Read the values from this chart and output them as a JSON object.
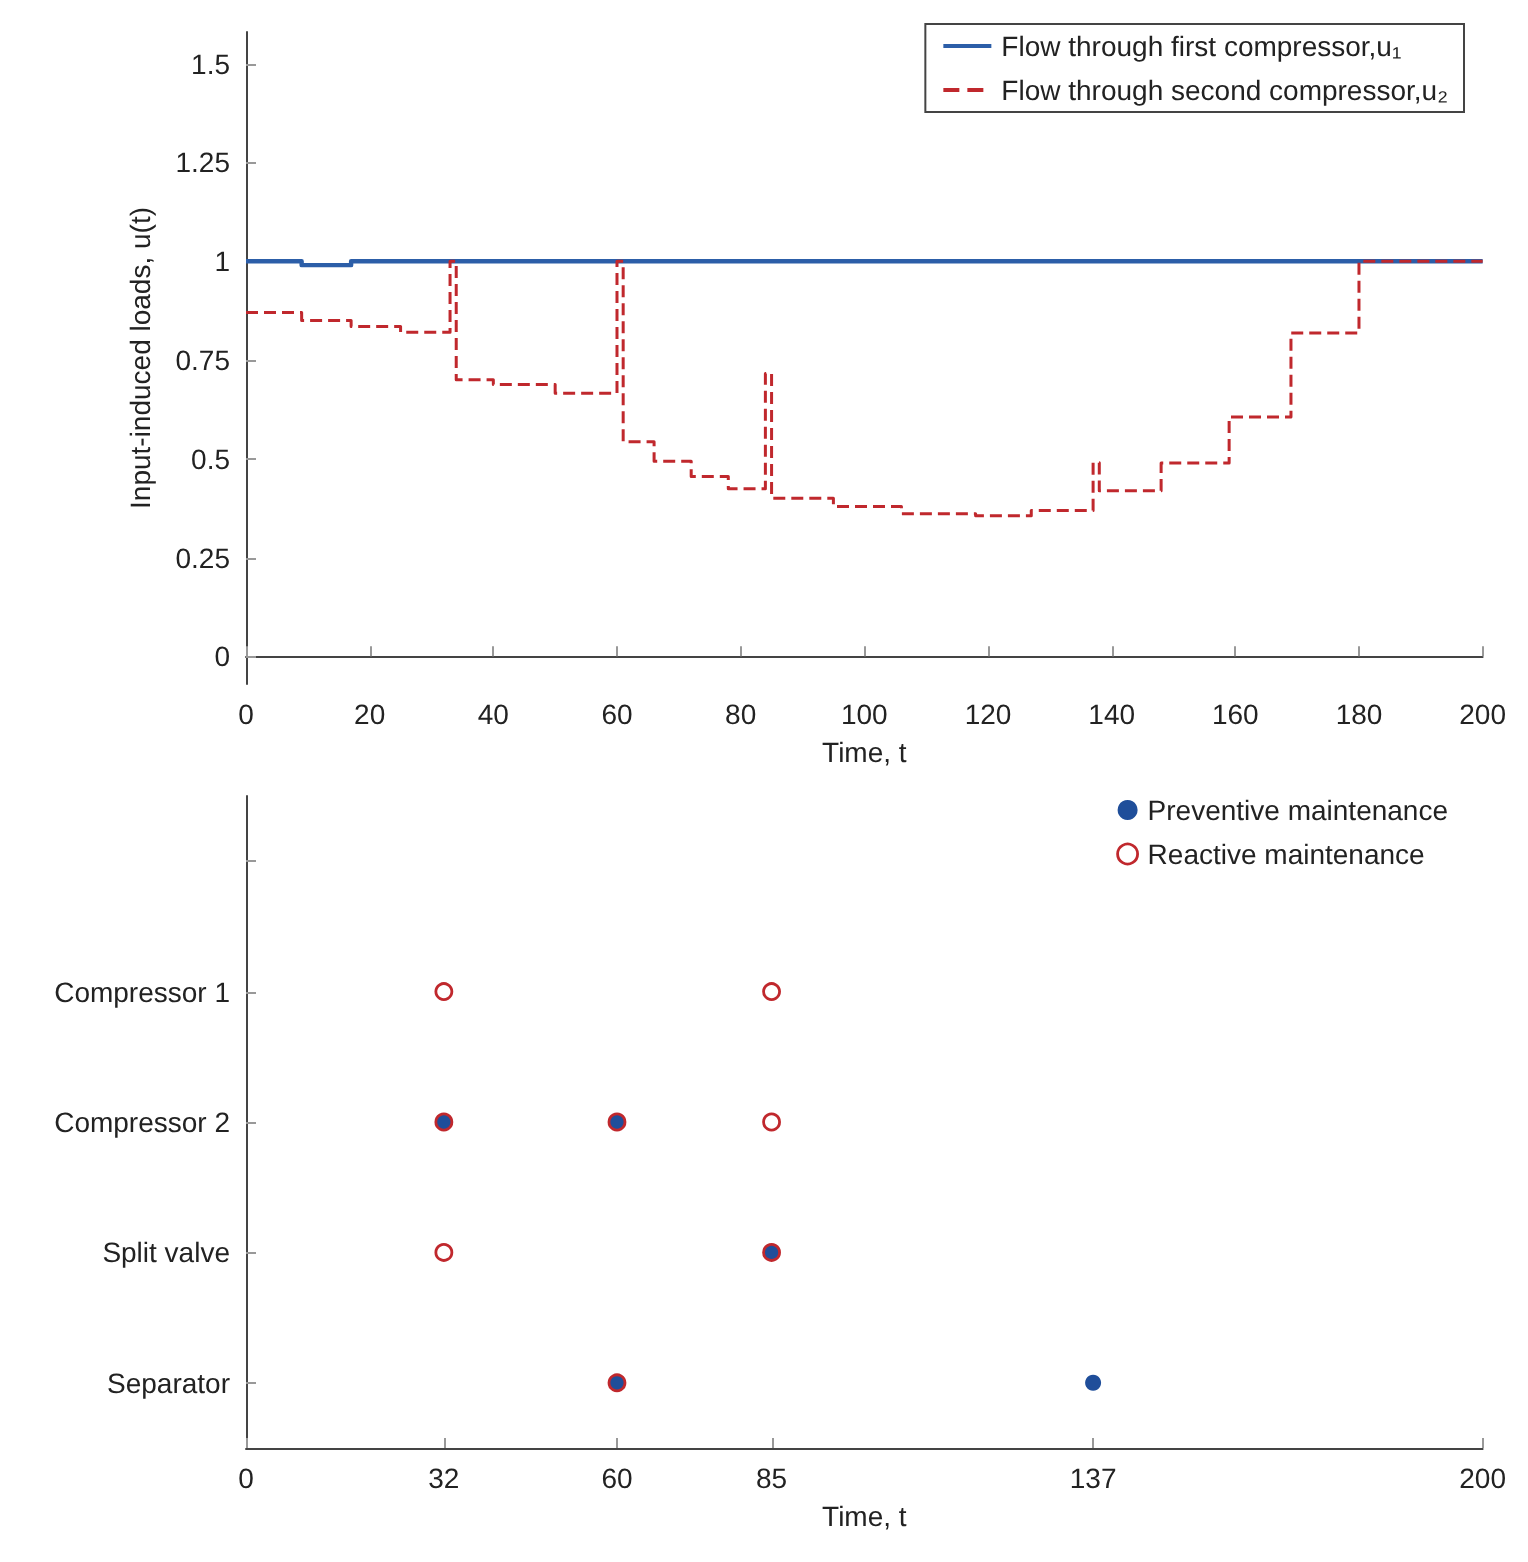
{
  "chart_data": [
    {
      "type": "step",
      "xlabel": "Time, t",
      "ylabel": "Input-induced loads, u(t)",
      "xlim": [
        0,
        200
      ],
      "xticks": [
        0,
        20,
        40,
        60,
        80,
        100,
        120,
        140,
        160,
        180,
        200
      ],
      "ylim": [
        -0.07,
        1.58
      ],
      "yticks": [
        0,
        0.25,
        0.5,
        0.75,
        1,
        1.25,
        1.5
      ],
      "legend": "top right",
      "grid": false,
      "series": [
        {
          "name": "Flow through first compressor,u₁",
          "color": "#2c5ea8",
          "line_style": "solid",
          "x": [
            0,
            9,
            17,
            200
          ],
          "values": [
            1,
            0.99,
            1,
            1
          ]
        },
        {
          "name": "Flow through second compressor,u₂",
          "color": "#c0282d",
          "line_style": "dashed",
          "x": [
            0,
            9,
            17,
            25,
            33,
            34,
            40,
            50,
            60,
            61,
            66,
            72,
            78,
            84,
            85,
            95,
            106,
            118,
            127,
            137,
            138,
            148,
            159,
            169,
            180,
            200
          ],
          "values": [
            0.87,
            0.85,
            0.835,
            0.82,
            1,
            0.7,
            0.688,
            0.666,
            1,
            0.543,
            0.494,
            0.455,
            0.424,
            0.716,
            0.4,
            0.379,
            0.361,
            0.356,
            0.369,
            0.49,
            0.419,
            0.489,
            0.606,
            0.818,
            1,
            1
          ]
        }
      ]
    },
    {
      "type": "scatter",
      "orientation": "horizontal",
      "xlabel": "Time, t",
      "xlim": [
        0,
        200
      ],
      "xticks": [
        0,
        32,
        60,
        85,
        137,
        200
      ],
      "categories": [
        null,
        "Compressor 1",
        "Compressor 2",
        "Split valve",
        "Separator"
      ],
      "legend": "top right",
      "grid": false,
      "series": [
        {
          "name": "Preventive maintenance",
          "color": "#1f4e9a",
          "marker": "circle",
          "x": [
            "Compressor 2",
            "Compressor 2",
            "Split valve",
            "Separator",
            "Separator"
          ],
          "values": [
            32,
            60,
            85,
            60,
            137
          ]
        },
        {
          "name": "Reactive maintenance",
          "color": "#c0282d",
          "marker": "open circle",
          "x": [
            "Compressor 1",
            "Compressor 1",
            "Compressor 2",
            "Compressor 2",
            "Compressor 2",
            "Split valve",
            "Split valve",
            "Separator"
          ],
          "values": [
            32,
            85,
            32,
            60,
            85,
            32,
            85,
            60
          ]
        }
      ]
    }
  ]
}
